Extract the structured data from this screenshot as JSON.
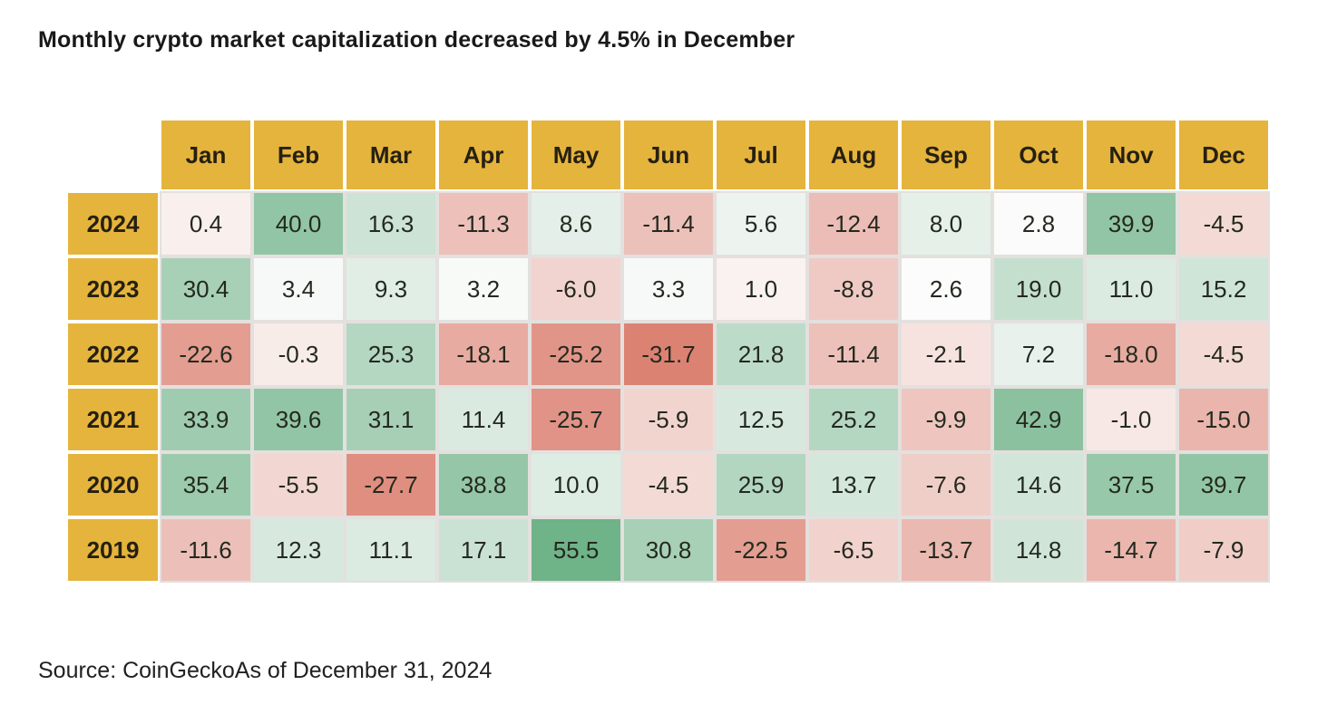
{
  "title": "Monthly crypto market capitalization decreased by 4.5% in December",
  "source": "Source: CoinGeckoAs of December 31, 2024",
  "chart_data": {
    "type": "heatmap",
    "title": "Monthly crypto market capitalization decreased by 4.5% in December",
    "columns": [
      "Jan",
      "Feb",
      "Mar",
      "Apr",
      "May",
      "Jun",
      "Jul",
      "Aug",
      "Sep",
      "Oct",
      "Nov",
      "Dec"
    ],
    "rows": [
      {
        "year": "2024",
        "values": [
          0.4,
          40.0,
          16.3,
          -11.3,
          8.6,
          -11.4,
          5.6,
          -12.4,
          8.0,
          2.8,
          39.9,
          -4.5
        ]
      },
      {
        "year": "2023",
        "values": [
          30.4,
          3.4,
          9.3,
          3.2,
          -6.0,
          3.3,
          1.0,
          -8.8,
          2.6,
          19.0,
          11.0,
          15.2
        ]
      },
      {
        "year": "2022",
        "values": [
          -22.6,
          -0.3,
          25.3,
          -18.1,
          -25.2,
          -31.7,
          21.8,
          -11.4,
          -2.1,
          7.2,
          -18.0,
          -4.5
        ]
      },
      {
        "year": "2021",
        "values": [
          33.9,
          39.6,
          31.1,
          11.4,
          -25.7,
          -5.9,
          12.5,
          25.2,
          -9.9,
          42.9,
          -1.0,
          -15.0
        ]
      },
      {
        "year": "2020",
        "values": [
          35.4,
          -5.5,
          -27.7,
          38.8,
          10.0,
          -4.5,
          25.9,
          13.7,
          -7.6,
          14.6,
          37.5,
          39.7
        ]
      },
      {
        "year": "2019",
        "values": [
          -11.6,
          12.3,
          11.1,
          17.1,
          55.5,
          30.8,
          -22.5,
          -6.5,
          -13.7,
          14.8,
          -14.7,
          -7.9
        ]
      }
    ],
    "value_format": "one_decimal",
    "units": "percent_change",
    "layout": {
      "header_position": "top",
      "row_labels_position": "left"
    },
    "colors": {
      "header_bg": "#E5B43C",
      "header_text": "#262012",
      "cell_text": "#24291F",
      "gap": "#E3E0DE",
      "positive_max": "#6FB389",
      "negative_max": "#DC8273",
      "neutral": "#FCFCFC"
    },
    "color_scale": {
      "domain": [
        -31.7,
        55.5
      ],
      "midpoint": 2.5,
      "gamma": 0.8
    }
  }
}
